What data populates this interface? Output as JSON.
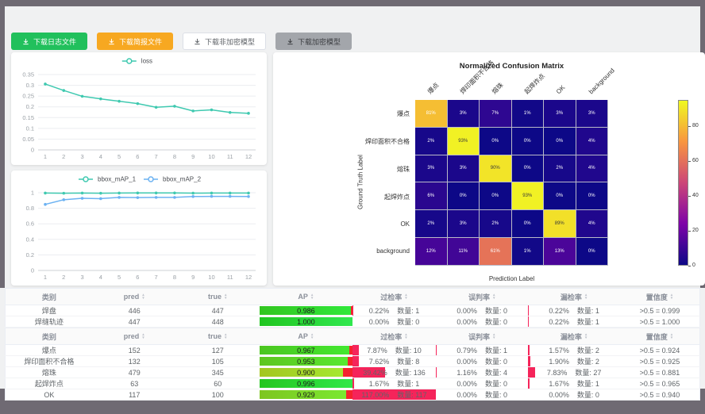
{
  "window": {
    "backdrop": "#6f6a73",
    "panel_bg": "#f0f1f2"
  },
  "toolbar": {
    "buttons": [
      {
        "label": "下载日志文件",
        "style": "green",
        "name": "download-log-button"
      },
      {
        "label": "下载简报文件",
        "style": "orange",
        "name": "download-report-button"
      },
      {
        "label": "下载非加密模型",
        "style": "plain",
        "name": "download-unencrypted-model-button"
      },
      {
        "label": "下载加密模型",
        "style": "gray",
        "name": "download-encrypted-model-button"
      }
    ]
  },
  "chart_data": [
    {
      "id": "loss",
      "type": "line",
      "legend_position": "top",
      "grid": true,
      "x": [
        1,
        2,
        3,
        4,
        5,
        6,
        7,
        8,
        9,
        10,
        11,
        12
      ],
      "series": [
        {
          "name": "loss",
          "color": "#3fc9b0",
          "values": [
            0.306,
            0.276,
            0.249,
            0.237,
            0.226,
            0.215,
            0.198,
            0.203,
            0.181,
            0.186,
            0.174,
            0.17
          ]
        }
      ],
      "ylim": [
        0,
        0.35
      ],
      "yticks": [
        {
          "v": 0,
          "label": "0"
        },
        {
          "v": 0.05,
          "label": "0.05"
        },
        {
          "v": 0.1,
          "label": "0.1"
        },
        {
          "v": 0.15,
          "label": "0.15"
        },
        {
          "v": 0.2,
          "label": "0.2"
        },
        {
          "v": 0.25,
          "label": "0.25"
        },
        {
          "v": 0.3,
          "label": "0.3"
        },
        {
          "v": 0.35,
          "label": "0.35"
        }
      ]
    },
    {
      "id": "bbox_map",
      "type": "line",
      "legend_position": "top",
      "grid": true,
      "x": [
        1,
        2,
        3,
        4,
        5,
        6,
        7,
        8,
        9,
        10,
        11,
        12
      ],
      "series": [
        {
          "name": "bbox_mAP_1",
          "color": "#3fc9b0",
          "values": [
            0.996,
            0.993,
            0.996,
            0.993,
            0.996,
            0.997,
            0.997,
            0.997,
            0.995,
            0.996,
            0.996,
            0.996
          ]
        },
        {
          "name": "bbox_mAP_2",
          "color": "#6cb2f2",
          "values": [
            0.85,
            0.91,
            0.928,
            0.924,
            0.94,
            0.937,
            0.94,
            0.94,
            0.951,
            0.953,
            0.953,
            0.951
          ]
        }
      ],
      "ylim": [
        0,
        1
      ],
      "yticks": [
        {
          "v": 0,
          "label": "0"
        },
        {
          "v": 0.2,
          "label": "0.2"
        },
        {
          "v": 0.4,
          "label": "0.4"
        },
        {
          "v": 0.6,
          "label": "0.6"
        },
        {
          "v": 0.8,
          "label": "0.8"
        },
        {
          "v": 1,
          "label": "1"
        }
      ]
    },
    {
      "id": "confusion_matrix",
      "type": "heatmap",
      "title": "Normalized Confusion Matrix",
      "xlabel": "Prediction Label",
      "ylabel": "Ground Truth Label",
      "labels": [
        "爆点",
        "焊印面积不合格",
        "熔珠",
        "起焊炸点",
        "OK",
        "background"
      ],
      "values_pct": [
        [
          81,
          3,
          7,
          1,
          3,
          3
        ],
        [
          2,
          93,
          0,
          0,
          0,
          4
        ],
        [
          3,
          3,
          90,
          0,
          2,
          4
        ],
        [
          6,
          0,
          0,
          93,
          0,
          0
        ],
        [
          2,
          3,
          2,
          0,
          89,
          4
        ],
        [
          12,
          11,
          61,
          1,
          13,
          0
        ]
      ],
      "vmax": 95,
      "colorbar_ticks": [
        80,
        60,
        40,
        20,
        0
      ],
      "colormap": "plasma"
    }
  ],
  "tables": {
    "headers": [
      {
        "key": "category",
        "label": "类别",
        "sortable": false
      },
      {
        "key": "pred",
        "label": "pred",
        "sortable": true
      },
      {
        "key": "true",
        "label": "true",
        "sortable": true
      },
      {
        "key": "ap",
        "label": "AP",
        "sortable": true
      },
      {
        "key": "over",
        "label": "过检率",
        "sortable": true
      },
      {
        "key": "mis",
        "label": "误判率",
        "sortable": true
      },
      {
        "key": "miss",
        "label": "漏检率",
        "sortable": true
      },
      {
        "key": "conf",
        "label": "置信度",
        "sortable": true
      }
    ],
    "count_label": "数量:",
    "groups": [
      {
        "rows": [
          {
            "category": "焊盘",
            "pred": "446",
            "true": "447",
            "ap": 0.986,
            "over": {
              "pct": "0.22%",
              "n": "1",
              "w": 0.22
            },
            "mis": {
              "pct": "0.00%",
              "n": "0",
              "w": 0
            },
            "miss": {
              "pct": "0.22%",
              "n": "1",
              "w": 0.22
            },
            "conf": ">0.5 = 0.999"
          },
          {
            "category": "焊缝轨迹",
            "pred": "447",
            "true": "448",
            "ap": 1.0,
            "over": {
              "pct": "0.00%",
              "n": "0",
              "w": 0
            },
            "mis": {
              "pct": "0.00%",
              "n": "0",
              "w": 0
            },
            "miss": {
              "pct": "0.22%",
              "n": "1",
              "w": 0.22
            },
            "conf": ">0.5 = 1.000"
          }
        ]
      },
      {
        "rows": [
          {
            "category": "爆点",
            "pred": "152",
            "true": "127",
            "ap": 0.967,
            "over": {
              "pct": "7.87%",
              "n": "10",
              "w": 7.87
            },
            "mis": {
              "pct": "0.79%",
              "n": "1",
              "w": 0.79
            },
            "miss": {
              "pct": "1.57%",
              "n": "2",
              "w": 1.57
            },
            "conf": ">0.5 = 0.924"
          },
          {
            "category": "焊印面积不合格",
            "pred": "132",
            "true": "105",
            "ap": 0.953,
            "over": {
              "pct": "7.62%",
              "n": "8",
              "w": 7.62
            },
            "mis": {
              "pct": "0.00%",
              "n": "0",
              "w": 0
            },
            "miss": {
              "pct": "1.90%",
              "n": "2",
              "w": 1.9
            },
            "conf": ">0.5 = 0.925"
          },
          {
            "category": "熔珠",
            "pred": "479",
            "true": "345",
            "ap": 0.9,
            "over": {
              "pct": "39.42%",
              "n": "136",
              "w": 39.42
            },
            "mis": {
              "pct": "1.16%",
              "n": "4",
              "w": 1.16
            },
            "miss": {
              "pct": "7.83%",
              "n": "27",
              "w": 7.83
            },
            "conf": ">0.5 = 0.881"
          },
          {
            "category": "起焊炸点",
            "pred": "63",
            "true": "60",
            "ap": 0.996,
            "over": {
              "pct": "1.67%",
              "n": "1",
              "w": 1.67
            },
            "mis": {
              "pct": "0.00%",
              "n": "0",
              "w": 0
            },
            "miss": {
              "pct": "1.67%",
              "n": "1",
              "w": 1.67
            },
            "conf": ">0.5 = 0.965"
          },
          {
            "category": "OK",
            "pred": "117",
            "true": "100",
            "ap": 0.929,
            "over": {
              "pct": "117.00%",
              "n": "117",
              "w": 100
            },
            "mis": {
              "pct": "0.00%",
              "n": "0",
              "w": 0
            },
            "miss": {
              "pct": "0.00%",
              "n": "0",
              "w": 0
            },
            "conf": ">0.5 = 0.940"
          }
        ]
      }
    ]
  }
}
